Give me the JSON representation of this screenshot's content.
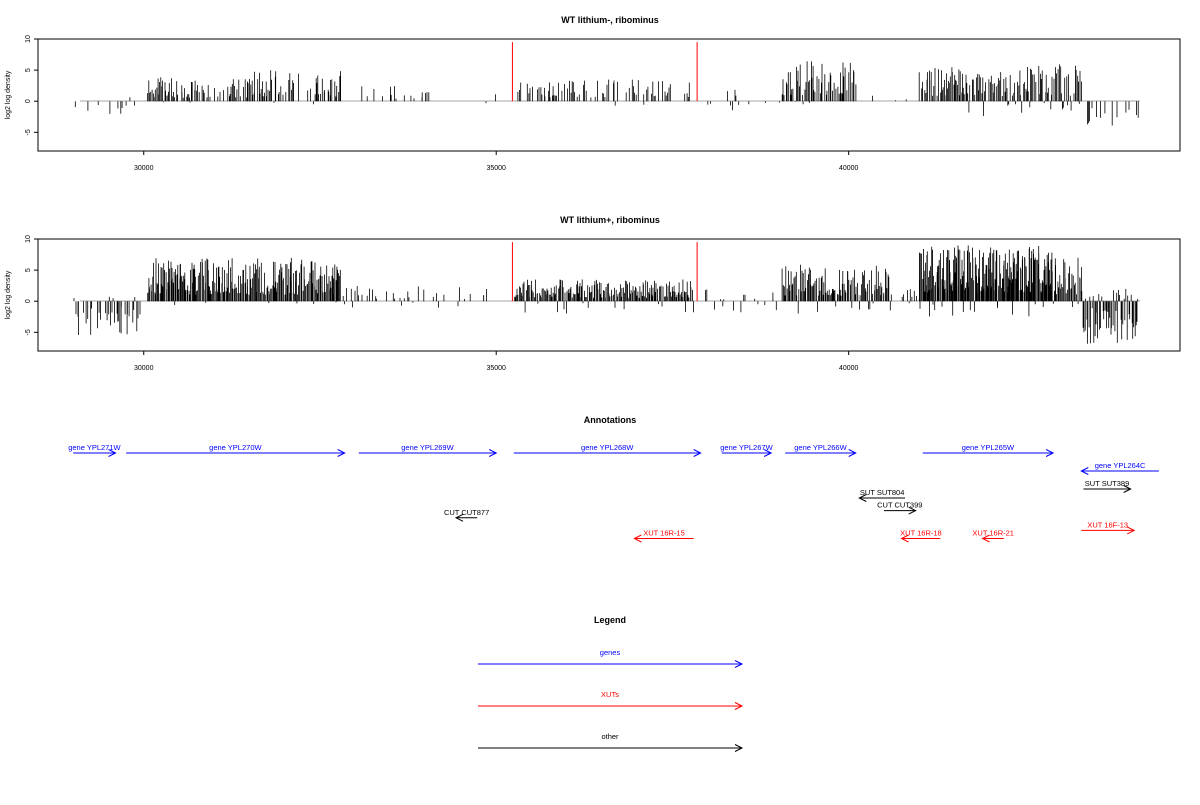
{
  "colors": {
    "gene": "#0000ff",
    "xut": "#ff0000",
    "other": "#000000",
    "baseline": "#888888"
  },
  "tracks": [
    {
      "title": "WT lithium-, ribominus",
      "ylabel": "log2 log density"
    },
    {
      "title": "WT lithium+, ribominus",
      "ylabel": "log2 log density"
    }
  ],
  "annotations": {
    "title": "Annotations",
    "features": [
      {
        "label": "gene YPL271W",
        "type": "gene",
        "start": 29000,
        "end": 29600,
        "strand": "+",
        "row": 0
      },
      {
        "label": "gene YPL270W",
        "type": "gene",
        "start": 29750,
        "end": 32850,
        "strand": "+",
        "row": 0
      },
      {
        "label": "gene YPL269W",
        "type": "gene",
        "start": 33050,
        "end": 35000,
        "strand": "+",
        "row": 0
      },
      {
        "label": "gene YPL268W",
        "type": "gene",
        "start": 35250,
        "end": 37900,
        "strand": "+",
        "row": 0
      },
      {
        "label": "gene YPL267W",
        "type": "gene",
        "start": 38200,
        "end": 38900,
        "strand": "+",
        "row": 0
      },
      {
        "label": "gene YPL266W",
        "type": "gene",
        "start": 39100,
        "end": 40100,
        "strand": "+",
        "row": 0
      },
      {
        "label": "gene YPL265W",
        "type": "gene",
        "start": 41050,
        "end": 42900,
        "strand": "+",
        "row": 0
      },
      {
        "label": "gene YPL264C",
        "type": "gene",
        "start": 43300,
        "end": 44400,
        "strand": "-",
        "row": 1
      },
      {
        "label": "SUT SUT389",
        "type": "other",
        "start": 43330,
        "end": 44000,
        "strand": "+",
        "row": 2
      },
      {
        "label": "SUT SUT804",
        "type": "other",
        "start": 40150,
        "end": 40800,
        "strand": "-",
        "row": 2.5
      },
      {
        "label": "CUT CUT399",
        "type": "other",
        "start": 40500,
        "end": 40950,
        "strand": "+",
        "row": 3.2
      },
      {
        "label": "CUT CUT877",
        "type": "other",
        "start": 34430,
        "end": 34730,
        "strand": "-",
        "row": 3.6
      },
      {
        "label": "XUT 16F-13",
        "type": "xut",
        "start": 43300,
        "end": 44050,
        "strand": "+",
        "row": 4.3
      },
      {
        "label": "XUT 16R-15",
        "type": "xut",
        "start": 36960,
        "end": 37800,
        "strand": "-",
        "row": 4.75
      },
      {
        "label": "XUT 16R-18",
        "type": "xut",
        "start": 40750,
        "end": 41300,
        "strand": "-",
        "row": 4.75
      },
      {
        "label": "XUT 16R-21",
        "type": "xut",
        "start": 41900,
        "end": 42200,
        "strand": "-",
        "row": 4.75
      }
    ]
  },
  "legend": {
    "title": "Legend",
    "items": [
      {
        "label": "genes",
        "type": "gene"
      },
      {
        "label": "XUTs",
        "type": "xut"
      },
      {
        "label": "other",
        "type": "other"
      }
    ]
  },
  "chart_data": [
    {
      "type": "bar",
      "title": "WT lithium-, ribominus",
      "xlabel": "",
      "ylabel": "log2 log density",
      "xlim": [
        28500,
        44700
      ],
      "ylim": [
        -8,
        10
      ],
      "x_ticks": [
        30000,
        35000,
        40000
      ],
      "y_ticks": [
        -5,
        0,
        5,
        10
      ],
      "red_peaks": [
        {
          "x": 35230,
          "y": 9.5
        },
        {
          "x": 37850,
          "y": 9.5
        }
      ],
      "segments": [
        {
          "start": 29000,
          "end": 29950,
          "dens": 0.18,
          "pos": 0.05,
          "max": 3,
          "min": -2.5
        },
        {
          "start": 30050,
          "end": 30400,
          "dens": 0.9,
          "pos": 0.95,
          "max": 4.3,
          "min": -0.5
        },
        {
          "start": 30400,
          "end": 31500,
          "dens": 0.55,
          "pos": 0.97,
          "max": 3.6,
          "min": -0.5
        },
        {
          "start": 31500,
          "end": 32800,
          "dens": 0.6,
          "pos": 0.97,
          "max": 5,
          "min": -0.5
        },
        {
          "start": 32800,
          "end": 35000,
          "dens": 0.12,
          "pos": 0.95,
          "max": 2.5,
          "min": -0.5
        },
        {
          "start": 35250,
          "end": 37800,
          "dens": 0.45,
          "pos": 0.9,
          "max": 3.5,
          "min": -2
        },
        {
          "start": 37950,
          "end": 38600,
          "dens": 0.1,
          "pos": 0.5,
          "max": 2,
          "min": -2
        },
        {
          "start": 38700,
          "end": 39050,
          "dens": 0.07,
          "pos": 0.4,
          "max": 1.5,
          "min": -1
        },
        {
          "start": 39050,
          "end": 40100,
          "dens": 0.75,
          "pos": 0.97,
          "max": 6.5,
          "min": -0.5
        },
        {
          "start": 40100,
          "end": 41000,
          "dens": 0.03,
          "pos": 1,
          "max": 1,
          "min": -0.5
        },
        {
          "start": 41000,
          "end": 42600,
          "dens": 0.85,
          "pos": 0.9,
          "max": 5.5,
          "min": -2.5
        },
        {
          "start": 42600,
          "end": 43300,
          "dens": 0.7,
          "pos": 0.85,
          "max": 6,
          "min": -1.5
        },
        {
          "start": 43300,
          "end": 44100,
          "dens": 0.25,
          "pos": 0.1,
          "max": 1,
          "min": -4.5
        }
      ]
    },
    {
      "type": "bar",
      "title": "WT lithium+, ribominus",
      "xlabel": "",
      "ylabel": "log2 log density",
      "xlim": [
        28500,
        44700
      ],
      "ylim": [
        -8,
        10
      ],
      "x_ticks": [
        30000,
        35000,
        40000
      ],
      "y_ticks": [
        -5,
        0,
        5,
        10
      ],
      "red_peaks": [
        {
          "x": 35230,
          "y": 9.5
        },
        {
          "x": 37850,
          "y": 9.5
        }
      ],
      "segments": [
        {
          "start": 29000,
          "end": 29950,
          "dens": 0.55,
          "pos": 0.1,
          "max": 3,
          "min": -5.5
        },
        {
          "start": 30050,
          "end": 32800,
          "dens": 1.3,
          "pos": 0.97,
          "max": 7,
          "min": -1
        },
        {
          "start": 32800,
          "end": 34000,
          "dens": 0.3,
          "pos": 0.9,
          "max": 2.5,
          "min": -1
        },
        {
          "start": 34000,
          "end": 35000,
          "dens": 0.12,
          "pos": 0.75,
          "max": 2.5,
          "min": -1.5
        },
        {
          "start": 35250,
          "end": 37800,
          "dens": 1.1,
          "pos": 0.9,
          "max": 3.5,
          "min": -2
        },
        {
          "start": 37950,
          "end": 39050,
          "dens": 0.2,
          "pos": 0.55,
          "max": 2,
          "min": -2
        },
        {
          "start": 39050,
          "end": 40600,
          "dens": 1.0,
          "pos": 0.9,
          "max": 6,
          "min": -2
        },
        {
          "start": 40600,
          "end": 41000,
          "dens": 0.3,
          "pos": 0.7,
          "max": 2,
          "min": -2
        },
        {
          "start": 41000,
          "end": 42900,
          "dens": 1.8,
          "pos": 0.93,
          "max": 9,
          "min": -2.5
        },
        {
          "start": 42900,
          "end": 43300,
          "dens": 1.2,
          "pos": 0.85,
          "max": 7,
          "min": -2.5
        },
        {
          "start": 43300,
          "end": 44100,
          "dens": 1.0,
          "pos": 0.2,
          "max": 2.5,
          "min": -7
        }
      ]
    }
  ]
}
